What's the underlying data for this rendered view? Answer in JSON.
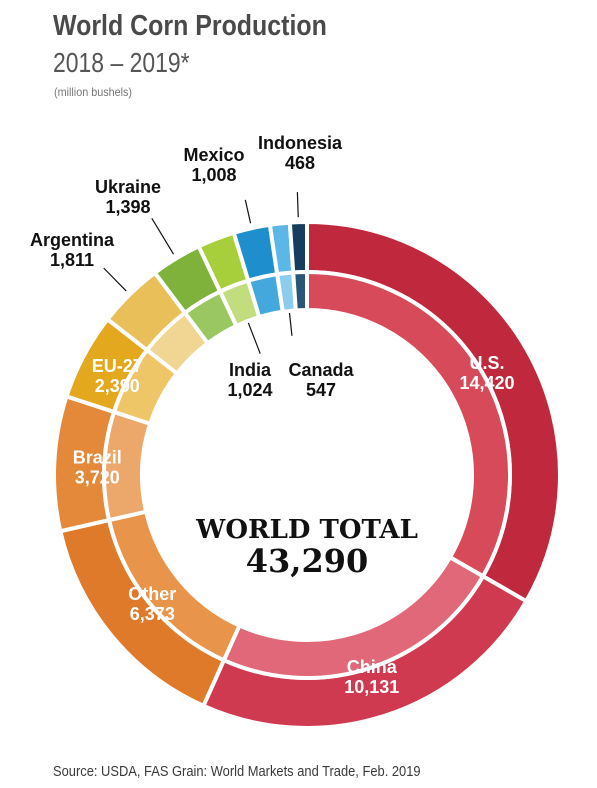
{
  "header": {
    "title": "World Corn Production",
    "subtitle": "2018 – 2019*",
    "unit": "(million bushels)"
  },
  "footer": {
    "source": "Source: USDA, FAS Grain: World Markets and Trade, Feb. 2019"
  },
  "chart_data": {
    "type": "pie",
    "donut": true,
    "center": {
      "label": "WORLD TOTAL",
      "value": "43,290"
    },
    "slices": [
      {
        "name": "U.S.",
        "value": 14420,
        "display": "14,420",
        "color": "#c0283d",
        "inner_color": "#d64a5a"
      },
      {
        "name": "China",
        "value": 10131,
        "display": "10,131",
        "color": "#cf3a50",
        "inner_color": "#e06878"
      },
      {
        "name": "Other",
        "value": 6373,
        "display": "6,373",
        "color": "#e07a2b",
        "inner_color": "#e8944a"
      },
      {
        "name": "Brazil",
        "value": 3720,
        "display": "3,720",
        "color": "#e4893a",
        "inner_color": "#eca86a"
      },
      {
        "name": "EU-27",
        "value": 2390,
        "display": "2,390",
        "color": "#e3a81e",
        "inner_color": "#eec567"
      },
      {
        "name": "Argentina",
        "value": 1811,
        "display": "1,811",
        "color": "#e9bf5a",
        "inner_color": "#f0d692"
      },
      {
        "name": "Ukraine",
        "value": 1398,
        "display": "1,398",
        "color": "#7fb23a",
        "inner_color": "#9ac761"
      },
      {
        "name": "India",
        "value": 1024,
        "display": "1,024",
        "color": "#a6cf3b",
        "inner_color": "#c2dd7d"
      },
      {
        "name": "Mexico",
        "value": 1008,
        "display": "1,008",
        "color": "#1e8fcc",
        "inner_color": "#45a8dd"
      },
      {
        "name": "Canada",
        "value": 547,
        "display": "547",
        "color": "#5bb8e6",
        "inner_color": "#8ccdee"
      },
      {
        "name": "Indonesia",
        "value": 468,
        "display": "468",
        "color": "#173d5e",
        "inner_color": "#2b5576"
      }
    ]
  }
}
